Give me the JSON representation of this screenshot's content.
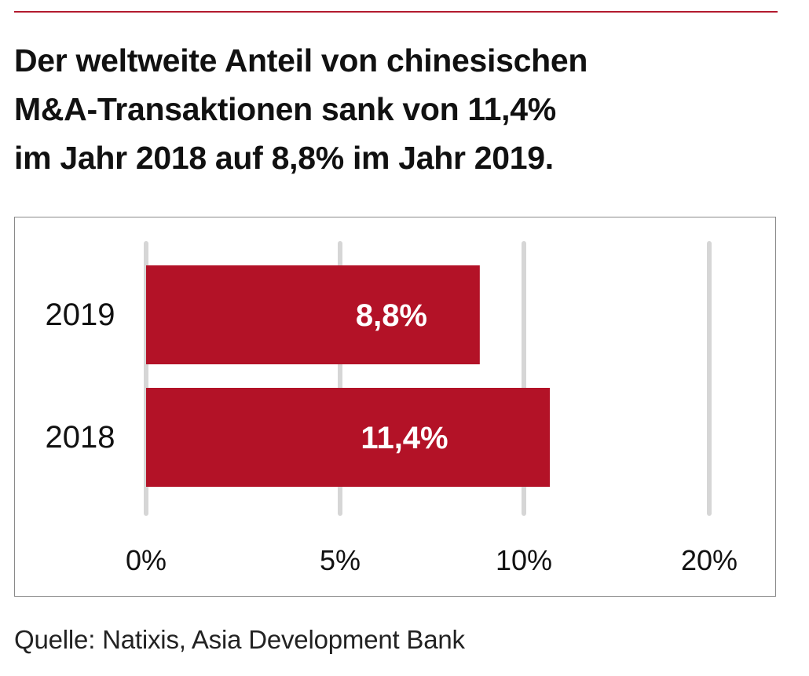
{
  "headline": {
    "lines": [
      "Der weltweite Anteil von chinesischen",
      "M&A-Transaktionen sank von 11,4%",
      "im Jahr 2018 auf 8,8% im Jahr 2019."
    ]
  },
  "source": "Quelle: Natixis, Asia Development Bank",
  "colors": {
    "bar": "#b31227",
    "rule": "#b31a2e",
    "grid": "#d6d6d6"
  },
  "chart_data": {
    "type": "bar",
    "orientation": "horizontal",
    "categories": [
      "2019",
      "2018"
    ],
    "values": [
      8.8,
      11.4
    ],
    "value_labels": [
      "8,8%",
      "11,4%"
    ],
    "x_ticks": [
      0,
      5,
      10,
      20
    ],
    "x_tick_labels": [
      "0%",
      "5%",
      "10%",
      "20%"
    ],
    "scale": "non-uniform (ticks at 0%, 5%, 10%, 20%)",
    "grid": true,
    "legend": "none"
  }
}
